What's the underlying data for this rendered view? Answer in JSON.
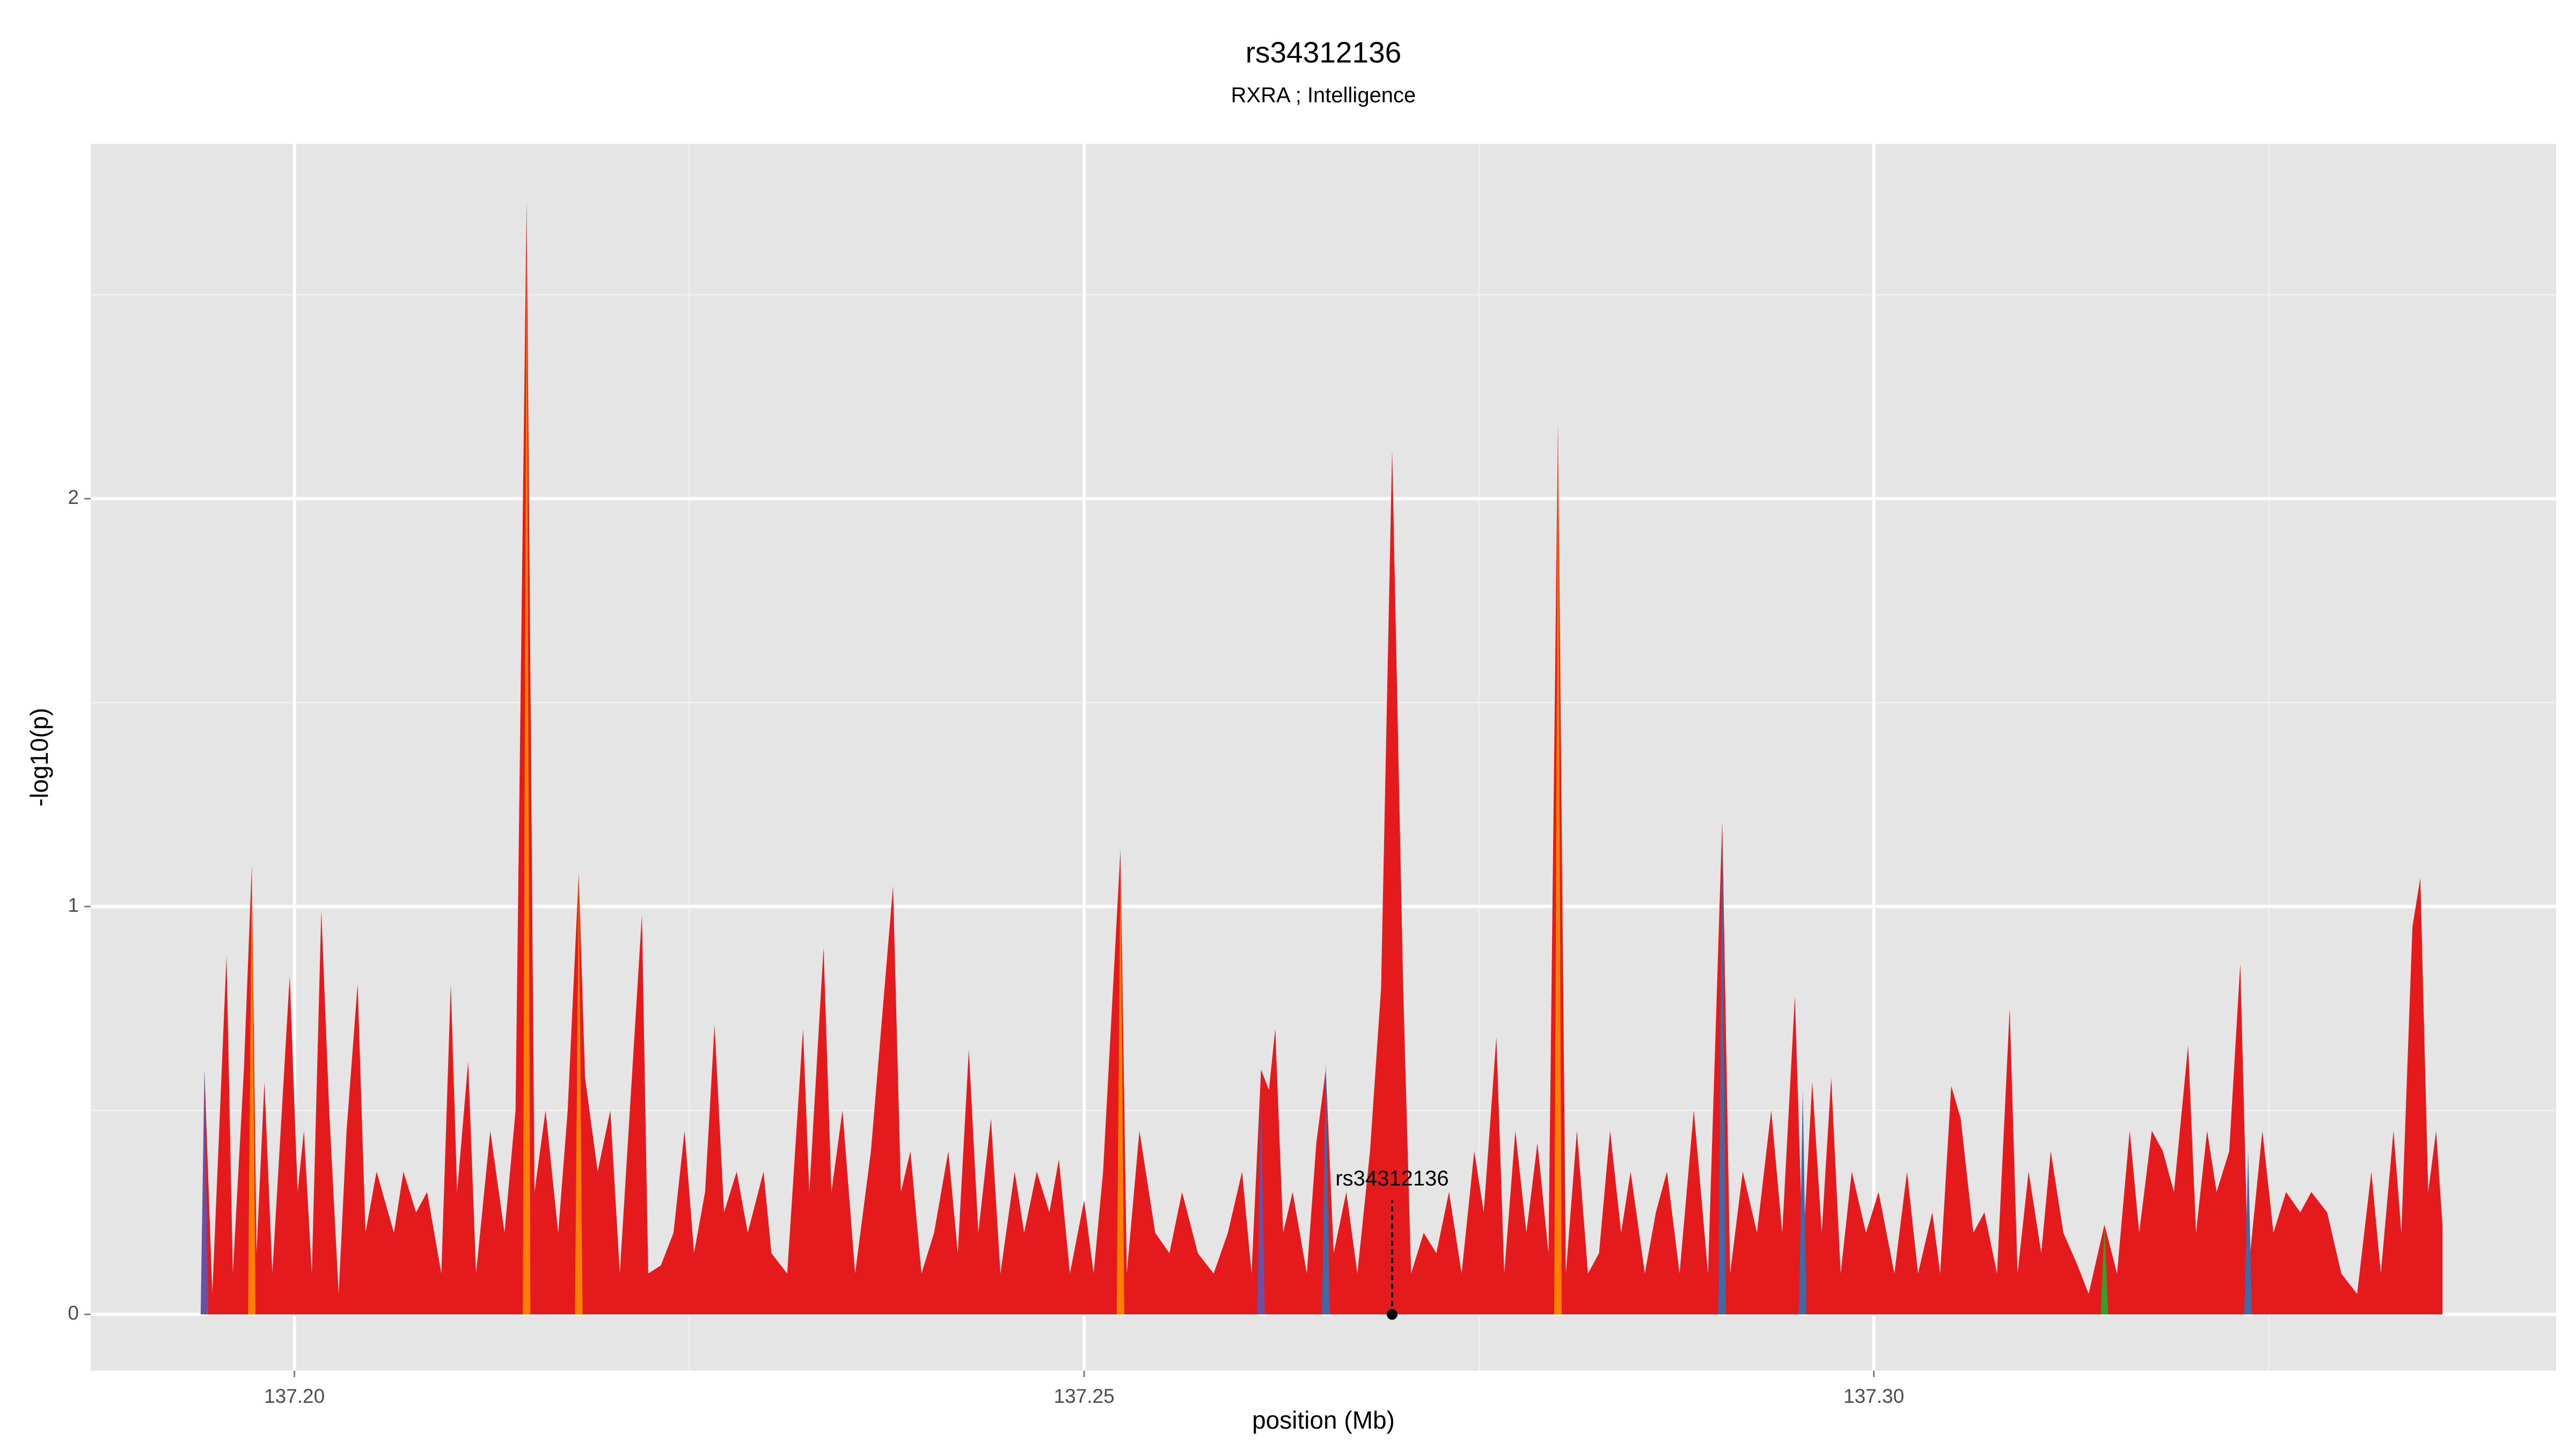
{
  "chart_data": {
    "type": "area",
    "title": "rs34312136",
    "subtitle": "RXRA ; Intelligence",
    "x_label": "position (Mb)",
    "y_label": "-log10(p)",
    "xlim": [
      137.1871,
      137.3432
    ],
    "ylim": [
      -0.138,
      2.87
    ],
    "xticks": [
      {
        "value": 137.2,
        "label": "137.20"
      },
      137.25,
      {
        "value": 137.3,
        "label": "137.30"
      }
    ],
    "yticks": [
      0,
      1,
      2
    ],
    "x_minor_grid": [
      137.225,
      137.275,
      137.325
    ],
    "y_minor_grid": [
      0.5,
      1.5,
      2.5
    ],
    "grid": true,
    "background": "#e5e5e5",
    "annotation": {
      "text": "rs34312136",
      "x": 137.2695,
      "y": 0,
      "top": 0.28
    },
    "series": [
      {
        "draw": "area",
        "color": "#e41a1c",
        "x": [
          137.1943,
          137.1948,
          137.1957,
          137.1961,
          137.1968,
          137.1973,
          137.1976,
          137.1981,
          137.1986,
          137.1997,
          137.2002,
          137.2006,
          137.2011,
          137.2017,
          137.2022,
          137.2028,
          137.2033,
          137.204,
          137.2045,
          137.2052,
          137.2063,
          137.2069,
          137.2077,
          137.2084,
          137.2093,
          137.2099,
          137.2103,
          137.211,
          137.2115,
          137.2124,
          137.2133,
          137.214,
          137.2147,
          137.2152,
          137.2159,
          137.2167,
          137.2173,
          137.218,
          137.2184,
          137.2192,
          137.22,
          137.2206,
          137.222,
          137.2224,
          137.2232,
          137.224,
          137.2247,
          137.2253,
          137.226,
          137.2266,
          137.2272,
          137.228,
          137.2287,
          137.2297,
          137.2302,
          137.2312,
          137.2322,
          137.2326,
          137.2335,
          137.234,
          137.2347,
          137.2355,
          137.2365,
          137.2379,
          137.2384,
          137.239,
          137.2397,
          137.2405,
          137.2414,
          137.242,
          137.2427,
          137.2433,
          137.2441,
          137.2447,
          137.2456,
          137.2462,
          137.247,
          137.2478,
          137.2484,
          137.2491,
          137.25,
          137.2506,
          137.2512,
          137.2523,
          137.2527,
          137.2535,
          137.2545,
          137.2554,
          137.2562,
          137.2572,
          137.2582,
          137.2591,
          137.26,
          137.2606,
          137.2612,
          137.2617,
          137.2621,
          137.2626,
          137.2632,
          137.2641,
          137.2647,
          137.2653,
          137.2658,
          137.2666,
          137.2673,
          137.2681,
          137.2688,
          137.2695,
          137.2702,
          137.2707,
          137.2715,
          137.2723,
          137.2731,
          137.2739,
          137.2747,
          137.2753,
          137.2761,
          137.2766,
          137.2773,
          137.278,
          137.2787,
          137.2794,
          137.28,
          137.2805,
          137.2812,
          137.2819,
          137.2826,
          137.2833,
          137.284,
          137.2846,
          137.2855,
          137.2862,
          137.2869,
          137.2877,
          137.2886,
          137.2895,
          137.2904,
          137.2909,
          137.2917,
          137.2926,
          137.2935,
          137.2942,
          137.295,
          137.2955,
          137.2961,
          137.2967,
          137.2973,
          137.2979,
          137.2986,
          137.2995,
          137.3003,
          137.3013,
          137.3021,
          137.3028,
          137.3037,
          137.3042,
          137.3049,
          137.3055,
          137.3063,
          137.307,
          137.3078,
          137.3086,
          137.3091,
          137.3098,
          137.3106,
          137.3112,
          137.312,
          137.3129,
          137.3136,
          137.3146,
          137.3154,
          137.3162,
          137.3168,
          137.3176,
          137.3183,
          137.319,
          137.3199,
          137.3204,
          137.3211,
          137.3217,
          137.3225,
          137.3232,
          137.3237,
          137.3246,
          137.3253,
          137.3261,
          137.327,
          137.3277,
          137.3287,
          137.3296,
          137.3306,
          137.3315,
          137.3321,
          137.3329,
          137.3334,
          137.3341,
          137.3346,
          137.3351,
          137.3356,
          137.336
        ],
        "values": [
          0.6,
          0.05,
          0.88,
          0.1,
          0.6,
          1.1,
          0.15,
          0.57,
          0.1,
          0.83,
          0.3,
          0.45,
          0.1,
          0.99,
          0.5,
          0.05,
          0.45,
          0.81,
          0.2,
          0.35,
          0.2,
          0.35,
          0.25,
          0.3,
          0.1,
          0.81,
          0.3,
          0.62,
          0.1,
          0.45,
          0.2,
          0.5,
          2.73,
          0.3,
          0.5,
          0.2,
          0.5,
          1.08,
          0.58,
          0.35,
          0.5,
          0.1,
          0.98,
          0.1,
          0.12,
          0.2,
          0.45,
          0.15,
          0.3,
          0.71,
          0.25,
          0.35,
          0.2,
          0.35,
          0.15,
          0.1,
          0.7,
          0.3,
          0.9,
          0.3,
          0.5,
          0.1,
          0.4,
          1.05,
          0.3,
          0.4,
          0.1,
          0.2,
          0.4,
          0.15,
          0.65,
          0.2,
          0.48,
          0.1,
          0.35,
          0.2,
          0.35,
          0.25,
          0.38,
          0.1,
          0.28,
          0.1,
          0.35,
          1.14,
          0.1,
          0.45,
          0.2,
          0.15,
          0.3,
          0.15,
          0.1,
          0.2,
          0.35,
          0.1,
          0.6,
          0.55,
          0.7,
          0.2,
          0.3,
          0.1,
          0.42,
          0.6,
          0.15,
          0.3,
          0.1,
          0.4,
          0.8,
          2.12,
          0.8,
          0.1,
          0.2,
          0.15,
          0.3,
          0.1,
          0.4,
          0.25,
          0.68,
          0.1,
          0.45,
          0.2,
          0.42,
          0.15,
          2.18,
          0.1,
          0.45,
          0.1,
          0.15,
          0.45,
          0.2,
          0.35,
          0.1,
          0.25,
          0.35,
          0.1,
          0.5,
          0.1,
          1.21,
          0.1,
          0.35,
          0.2,
          0.5,
          0.2,
          0.78,
          0.15,
          0.57,
          0.2,
          0.58,
          0.1,
          0.35,
          0.2,
          0.3,
          0.1,
          0.35,
          0.1,
          0.25,
          0.1,
          0.56,
          0.48,
          0.2,
          0.25,
          0.1,
          0.75,
          0.1,
          0.35,
          0.15,
          0.4,
          0.2,
          0.12,
          0.05,
          0.22,
          0.1,
          0.45,
          0.2,
          0.45,
          0.4,
          0.3,
          0.66,
          0.2,
          0.45,
          0.3,
          0.4,
          0.86,
          0.1,
          0.45,
          0.2,
          0.3,
          0.25,
          0.3,
          0.25,
          0.1,
          0.05,
          0.35,
          0.1,
          0.45,
          0.2,
          0.95,
          1.07,
          0.3,
          0.45,
          0.22
        ]
      },
      {
        "draw": "spike",
        "color": "#ff7f00",
        "x": [
          137.1973,
          137.2147,
          137.218,
          137.28,
          137.2523
        ],
        "values": [
          1.09,
          2.7,
          1.08,
          2.18,
          1.12
        ]
      },
      {
        "draw": "spike",
        "color": "#3e6aa8",
        "x": [
          137.2653,
          137.2904,
          137.2955,
          137.3237
        ],
        "values": [
          0.62,
          1.2,
          0.55,
          0.4
        ]
      },
      {
        "draw": "spike",
        "color": "#6a51a3",
        "x": [
          137.1943,
          137.2612
        ],
        "values": [
          0.6,
          0.55
        ]
      },
      {
        "draw": "spike",
        "color": "#33a02c",
        "x": [
          137.3146
        ],
        "values": [
          0.22
        ]
      }
    ]
  }
}
